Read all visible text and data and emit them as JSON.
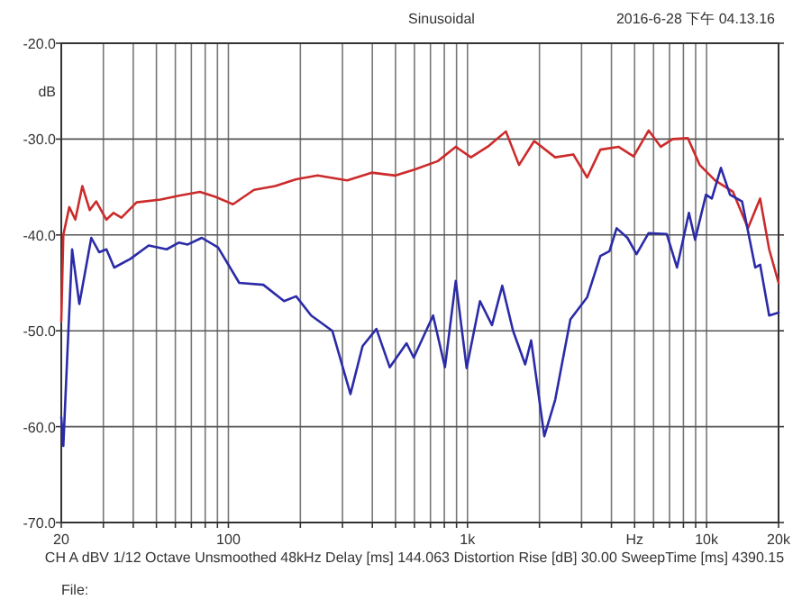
{
  "chart_data": {
    "type": "line",
    "title": "Sinusoidal",
    "ylabel": "dB",
    "log": "x",
    "grid": true,
    "annotations": [
      "2016-6-28 下午 04.13.16",
      "CH A   dBV   1/12 Octave   Unsmoothed   48kHz   Delay [ms] 144.063   Distortion Rise [dB] 30.00   SweepTime [ms] 4390.15",
      "File:"
    ],
    "xlim": [
      20,
      20000
    ],
    "ylim": [
      -70,
      -20
    ],
    "xticks": [
      {
        "value": 20,
        "label": "20"
      },
      {
        "value": 30,
        "label": null
      },
      {
        "value": 40,
        "label": null
      },
      {
        "value": 50,
        "label": null
      },
      {
        "value": 60,
        "label": null
      },
      {
        "value": 70,
        "label": null
      },
      {
        "value": 80,
        "label": null
      },
      {
        "value": 90,
        "label": null
      },
      {
        "value": 100,
        "label": "100"
      },
      {
        "value": 200,
        "label": null
      },
      {
        "value": 300,
        "label": null
      },
      {
        "value": 400,
        "label": null
      },
      {
        "value": 500,
        "label": null
      },
      {
        "value": 600,
        "label": null
      },
      {
        "value": 700,
        "label": null
      },
      {
        "value": 800,
        "label": null
      },
      {
        "value": 900,
        "label": null
      },
      {
        "value": 1000,
        "label": "1k"
      },
      {
        "value": 2000,
        "label": null
      },
      {
        "value": 3000,
        "label": null
      },
      {
        "value": 4000,
        "label": null
      },
      {
        "value": 5000,
        "label": "Hz"
      },
      {
        "value": 6000,
        "label": null
      },
      {
        "value": 7000,
        "label": null
      },
      {
        "value": 8000,
        "label": null
      },
      {
        "value": 9000,
        "label": null
      },
      {
        "value": 10000,
        "label": "10k"
      },
      {
        "value": 20000,
        "label": "20k"
      }
    ],
    "yticks": [
      {
        "value": -20,
        "label": "-20.0"
      },
      {
        "value": -30,
        "label": "-30.0"
      },
      {
        "value": -40,
        "label": "-40.0"
      },
      {
        "value": -50,
        "label": "-50.0"
      },
      {
        "value": -60,
        "label": "-60.0"
      },
      {
        "value": -70,
        "label": "-70.0"
      }
    ],
    "series": [
      {
        "color": "#cc2b2b",
        "x": [
          20,
          20.4,
          21.6,
          22.9,
          24.5,
          26.3,
          28,
          30.9,
          33.1,
          35.7,
          41.3,
          52.1,
          62,
          76,
          87.8,
          104.5,
          128,
          157,
          192,
          236,
          314,
          397,
          500,
          596,
          751,
          893,
          1034,
          1230,
          1447,
          1643,
          1901,
          2327,
          2770,
          3166,
          3595,
          4279,
          4953,
          5723,
          6433,
          7215,
          8347,
          9365,
          10840,
          12900,
          14900,
          16750,
          18270,
          20000
        ],
        "values": [
          -49,
          -40,
          -37.1,
          -38.4,
          -34.9,
          -37.4,
          -36.5,
          -38.4,
          -37.7,
          -38.2,
          -36.6,
          -36.3,
          -35.9,
          -35.5,
          -36,
          -36.8,
          -35.3,
          -34.9,
          -34.2,
          -33.8,
          -34.3,
          -33.5,
          -33.8,
          -33.2,
          -32.3,
          -30.8,
          -31.9,
          -30.7,
          -29.2,
          -32.7,
          -30.2,
          -31.9,
          -31.6,
          -34,
          -31.1,
          -30.8,
          -31.8,
          -29.1,
          -30.8,
          -30,
          -29.9,
          -32.7,
          -34.3,
          -35.5,
          -39.3,
          -36.2,
          -41.5,
          -45
        ]
      },
      {
        "color": "#2b2ba8",
        "x": [
          20,
          20.4,
          21.2,
          22.2,
          23.8,
          26.7,
          28.8,
          30.9,
          33.3,
          38.9,
          46.4,
          55.2,
          62,
          67.6,
          77.4,
          90.5,
          111,
          140,
          171,
          192,
          222,
          272,
          324,
          364,
          416,
          473,
          556,
          596,
          718,
          805,
          893,
          992,
          1128,
          1266,
          1398,
          1551,
          1743,
          1846,
          2096,
          2327,
          2694,
          3166,
          3595,
          3922,
          4205,
          4667,
          5093,
          5723,
          6810,
          7520,
          8437,
          8953,
          9940,
          10520,
          11480,
          12530,
          14070,
          15980,
          16750,
          18270,
          20000
        ],
        "values": [
          -59,
          -62,
          -52.5,
          -41.5,
          -47.2,
          -40.3,
          -41.8,
          -41.5,
          -43.4,
          -42.5,
          -41.1,
          -41.5,
          -40.8,
          -41,
          -40.3,
          -41.3,
          -45,
          -45.2,
          -46.9,
          -46.4,
          -48.4,
          -50,
          -56.6,
          -51.6,
          -49.8,
          -53.8,
          -51.3,
          -52.8,
          -48.4,
          -53.8,
          -44.8,
          -53.9,
          -46.9,
          -49.4,
          -45.3,
          -50,
          -53.5,
          -51,
          -61,
          -57.2,
          -48.8,
          -46.5,
          -42.2,
          -41.7,
          -39.3,
          -40.3,
          -42,
          -39.8,
          -39.9,
          -43.4,
          -37.7,
          -40.5,
          -35.8,
          -36.2,
          -33,
          -35.8,
          -36.5,
          -43.4,
          -43.1,
          -48.4,
          -48.1
        ]
      }
    ]
  }
}
